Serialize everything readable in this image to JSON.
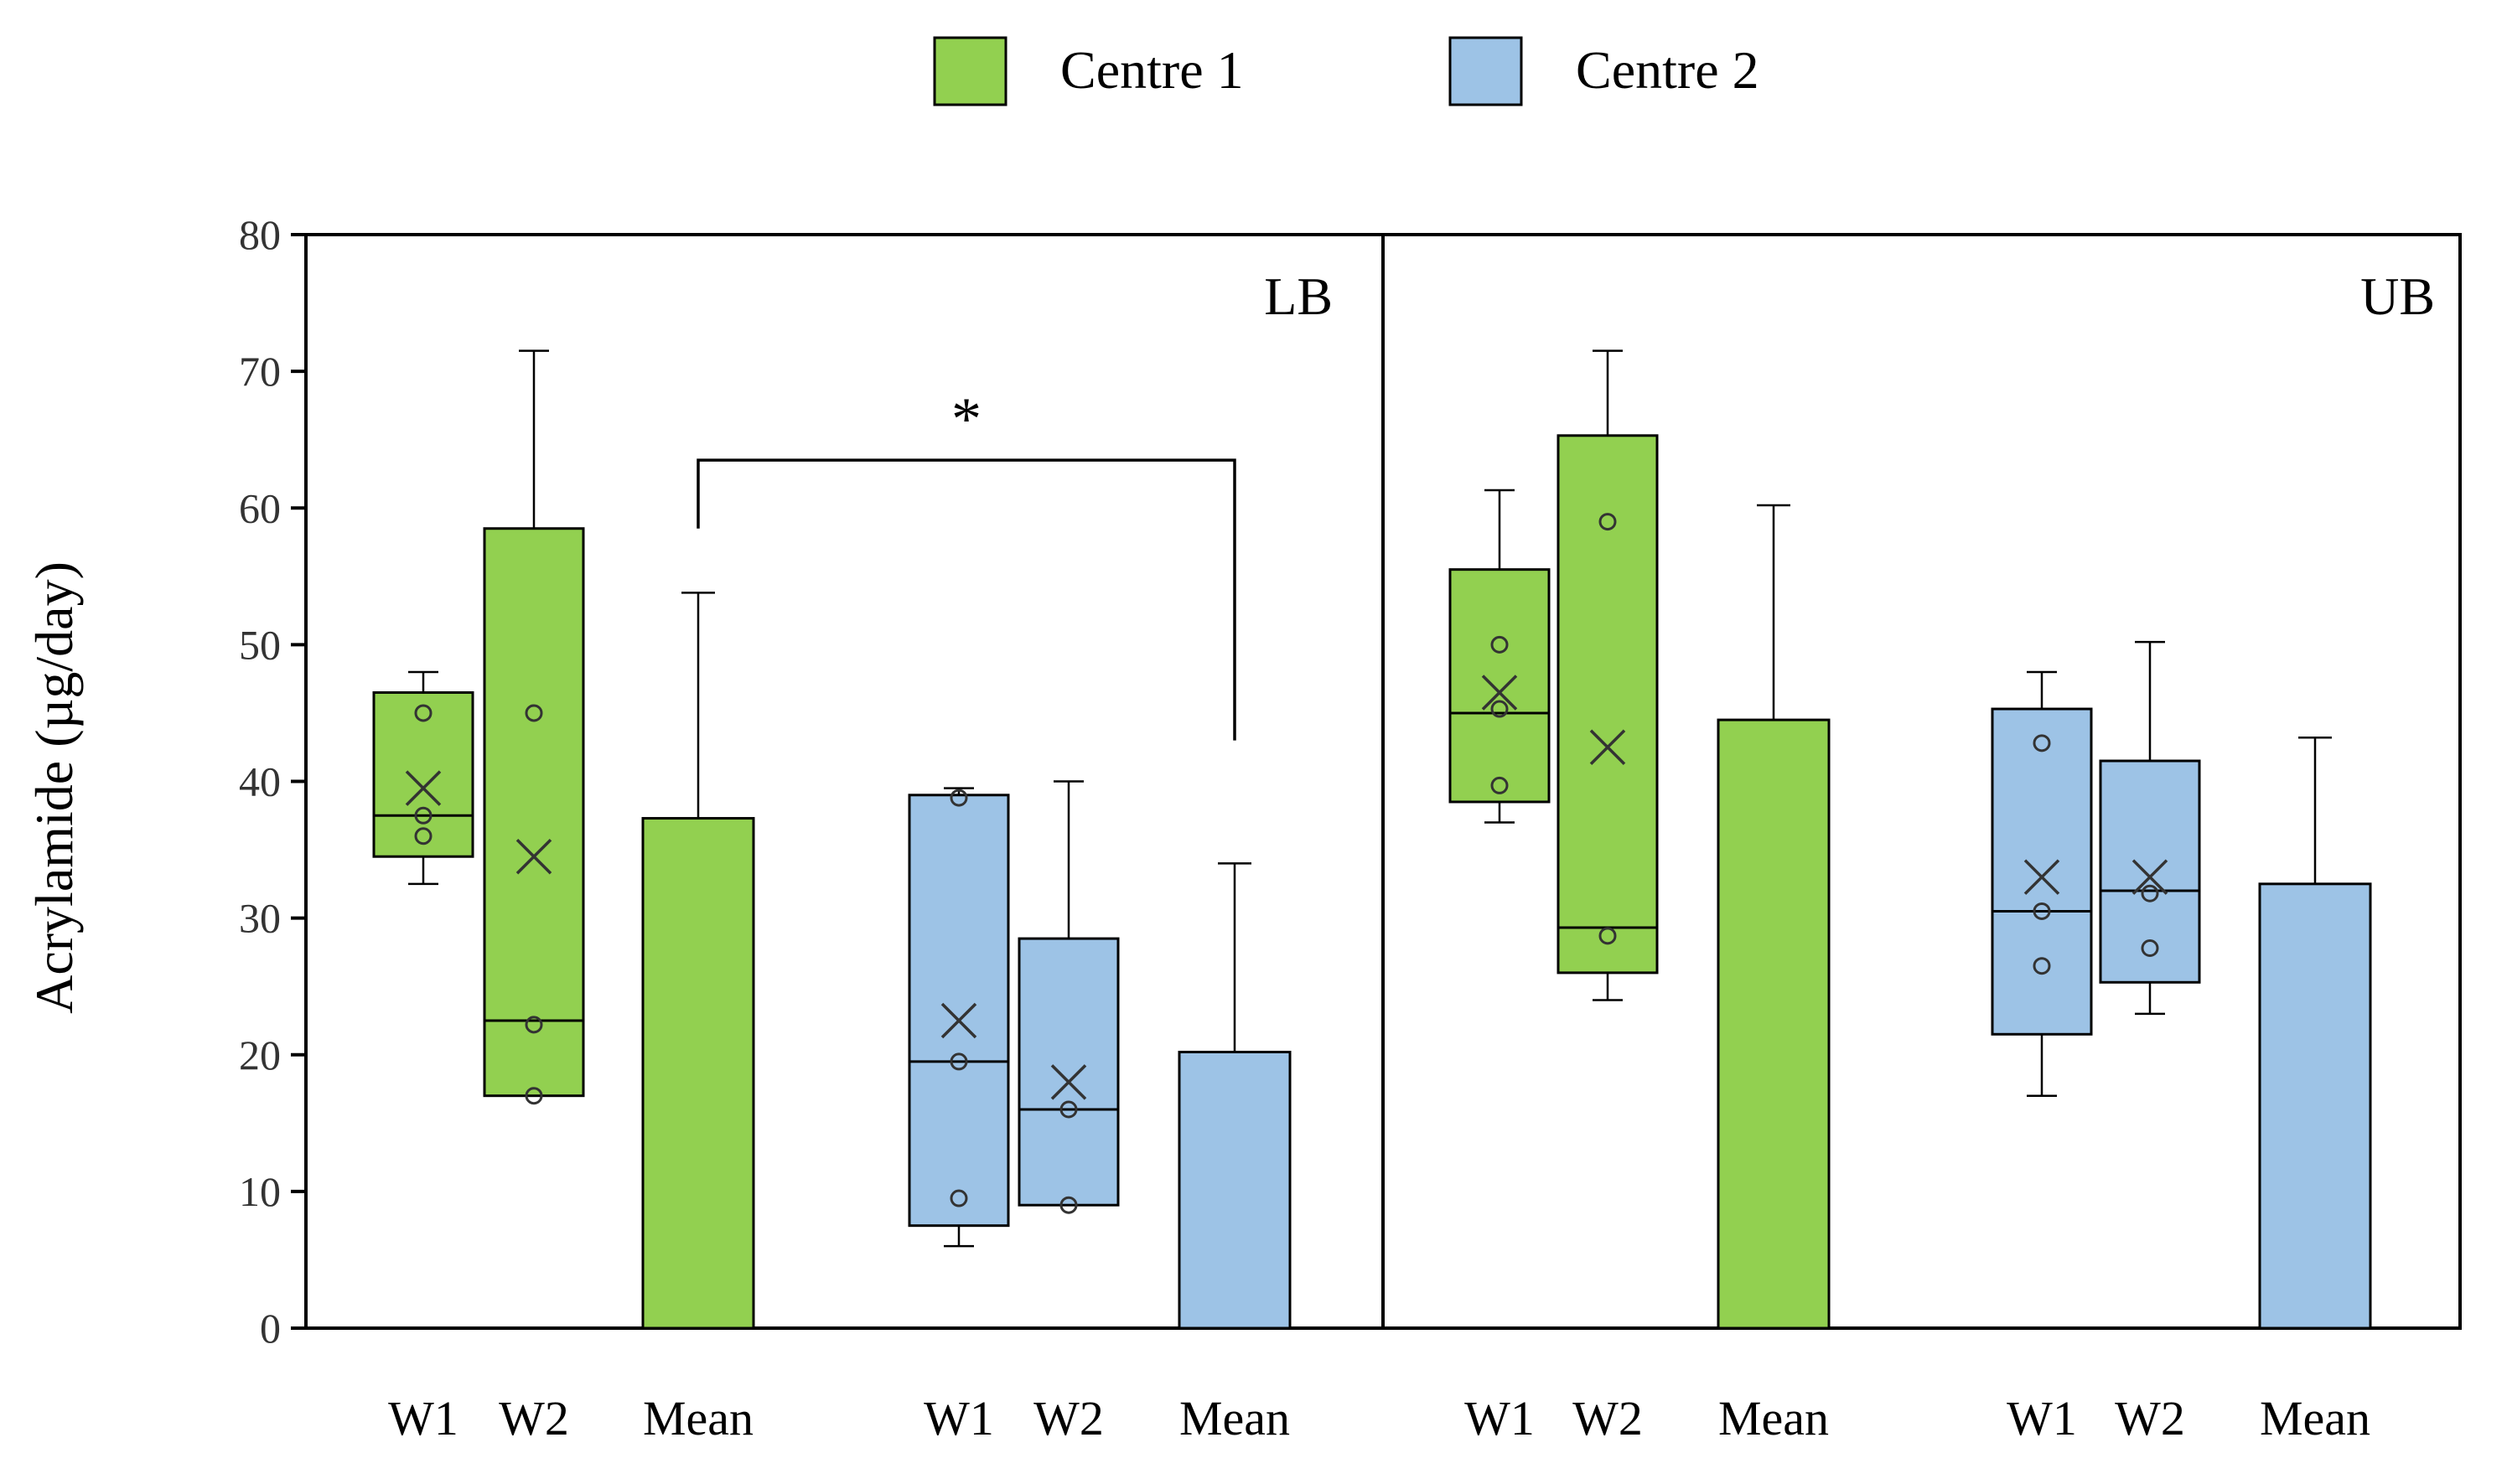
{
  "chart_data": {
    "type": "box",
    "ylabel": "Acrylamide (µg/day)",
    "ylim": [
      0,
      80
    ],
    "yticks": [
      0,
      10,
      20,
      30,
      40,
      50,
      60,
      70,
      80
    ],
    "legend": [
      {
        "name": "Centre 1",
        "color": "#92d050"
      },
      {
        "name": "Centre 2",
        "color": "#9dc3e6"
      }
    ],
    "panels": [
      {
        "label": "LB",
        "groups": [
          {
            "centre": "Centre 1",
            "color": "#92d050",
            "items": [
              {
                "label": "W1",
                "kind": "box",
                "min": 32.5,
                "q1": 34.5,
                "median": 37.5,
                "q3": 46.5,
                "max": 48,
                "mean": 39.5,
                "points": [
                  45,
                  37.5,
                  36
                ]
              },
              {
                "label": "W2",
                "kind": "box",
                "min": 17,
                "q1": 17,
                "median": 22.5,
                "q3": 58.5,
                "max": 71.5,
                "mean": 34.5,
                "points": [
                  45,
                  22.2,
                  17
                ]
              },
              {
                "label": "Mean",
                "kind": "bar",
                "value": 37.3,
                "error_upper": 53.8
              }
            ]
          },
          {
            "centre": "Centre 2",
            "color": "#9dc3e6",
            "items": [
              {
                "label": "W1",
                "kind": "box",
                "min": 6,
                "q1": 7.5,
                "median": 19.5,
                "q3": 39,
                "max": 39.5,
                "mean": 22.5,
                "points": [
                  38.8,
                  19.5,
                  9.5
                ]
              },
              {
                "label": "W2",
                "kind": "box",
                "min": 9,
                "q1": 9,
                "median": 16,
                "q3": 28.5,
                "max": 40,
                "mean": 18,
                "points": [
                  16,
                  9
                ]
              },
              {
                "label": "Mean",
                "kind": "bar",
                "value": 20.2,
                "error_upper": 34
              }
            ]
          }
        ],
        "annotation": {
          "text": "*",
          "from_group": 0,
          "to_group": 1,
          "y": 63.5
        }
      },
      {
        "label": "UB",
        "groups": [
          {
            "centre": "Centre 1",
            "color": "#92d050",
            "items": [
              {
                "label": "W1",
                "kind": "box",
                "min": 37,
                "q1": 38.5,
                "median": 45,
                "q3": 55.5,
                "max": 61.3,
                "mean": 46.5,
                "points": [
                  50,
                  45.3,
                  39.7
                ]
              },
              {
                "label": "W2",
                "kind": "box",
                "min": 24,
                "q1": 26,
                "median": 29.3,
                "q3": 65.3,
                "max": 71.5,
                "mean": 42.5,
                "points": [
                  59,
                  28.7
                ]
              },
              {
                "label": "Mean",
                "kind": "bar",
                "value": 44.5,
                "error_upper": 60.2
              }
            ]
          },
          {
            "centre": "Centre 2",
            "color": "#9dc3e6",
            "items": [
              {
                "label": "W1",
                "kind": "box",
                "min": 17,
                "q1": 21.5,
                "median": 30.5,
                "q3": 45.3,
                "max": 48,
                "mean": 33,
                "points": [
                  42.8,
                  30.5,
                  26.5
                ]
              },
              {
                "label": "W2",
                "kind": "box",
                "min": 23,
                "q1": 25.3,
                "median": 32,
                "q3": 41.5,
                "max": 50.2,
                "mean": 33,
                "points": [
                  31.8,
                  27.8
                ]
              },
              {
                "label": "Mean",
                "kind": "bar",
                "value": 32.5,
                "error_upper": 43.2
              }
            ]
          }
        ]
      }
    ]
  }
}
